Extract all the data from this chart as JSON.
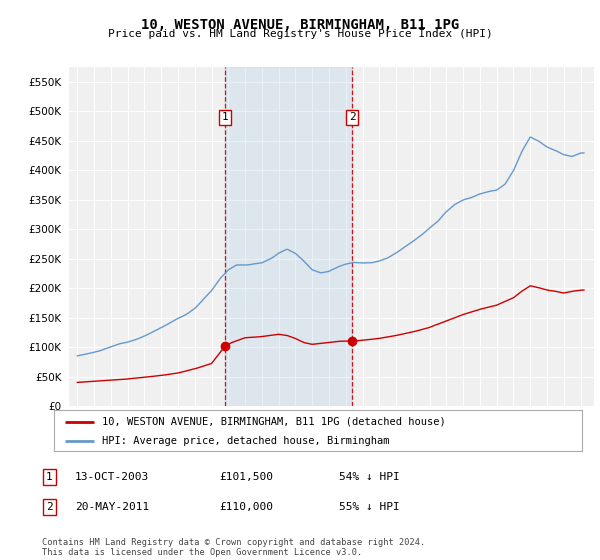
{
  "title": "10, WESTON AVENUE, BIRMINGHAM, B11 1PG",
  "subtitle": "Price paid vs. HM Land Registry's House Price Index (HPI)",
  "legend_line1": "10, WESTON AVENUE, BIRMINGHAM, B11 1PG (detached house)",
  "legend_line2": "HPI: Average price, detached house, Birmingham",
  "sale1_date": "13-OCT-2003",
  "sale1_price": 101500,
  "sale1_year": 2003.79,
  "sale2_date": "20-MAY-2011",
  "sale2_price": 110000,
  "sale2_year": 2011.38,
  "footer": "Contains HM Land Registry data © Crown copyright and database right 2024.\nThis data is licensed under the Open Government Licence v3.0.",
  "hpi_color": "#6699cc",
  "price_color": "#cc0000",
  "vline_color": "#cc0000",
  "shade_color": "#dce9f5",
  "background_color": "#f5f5f5",
  "ylim": [
    0,
    575000
  ],
  "xlim": [
    1994.5,
    2025.8
  ]
}
